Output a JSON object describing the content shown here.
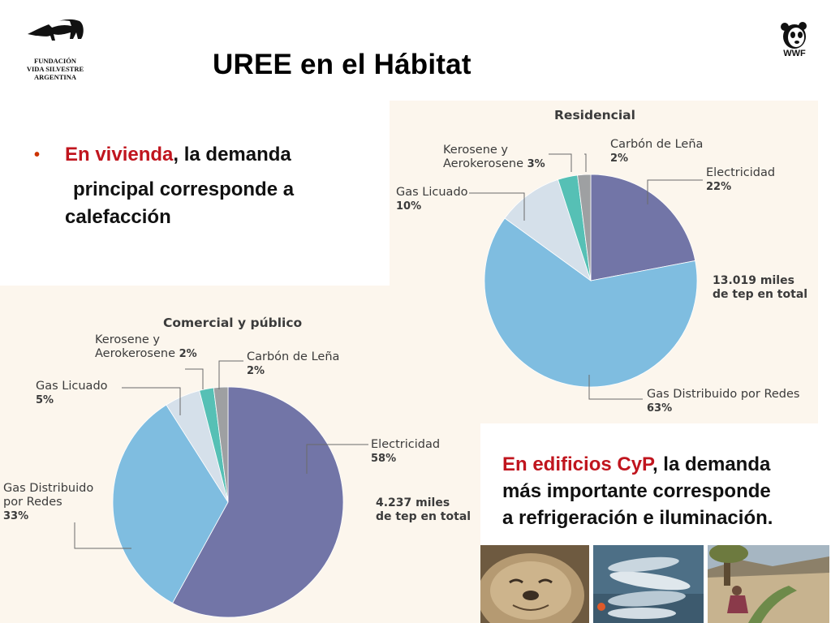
{
  "header": {
    "title": "UREE en el Hábitat",
    "org_logo": {
      "icon": "anteater-logo",
      "lines": [
        "FUNDACIÓN",
        "VIDA SILVESTRE",
        "ARGENTINA"
      ]
    },
    "wwf_logo": {
      "icon": "panda-logo",
      "text": "WWF"
    }
  },
  "bullets": {
    "vivienda": {
      "highlight": "En vivienda",
      "line1_rest": ", la demanda",
      "line2": "principal corresponde a",
      "line3": "calefacción"
    },
    "cyp": {
      "highlight": "En edificios CyP",
      "line1_rest": ", la demanda",
      "line2": "más importante corresponde",
      "line3": "a refrigeración e iluminación."
    }
  },
  "colors": {
    "electricidad": "#7275a7",
    "gas_distribuido": "#7fbde0",
    "gas_licuado": "#d5e0ea",
    "kerosene": "#56c0b5",
    "carbon": "#9ea0a2",
    "highlight_red": "#c0151e",
    "panel_bg": "#fcf6ed"
  },
  "chart_data": [
    {
      "type": "pie",
      "title": "Residencial",
      "categories": [
        "Electricidad",
        "Gas Distribuido por Redes",
        "Gas Licuado",
        "Kerosene y Aerokerosene",
        "Carbón de Leña"
      ],
      "values": [
        22,
        63,
        10,
        3,
        2
      ],
      "value_labels": [
        "22%",
        "63%",
        "10%",
        "3%",
        "2%"
      ],
      "total": "13.019 miles de tep en total",
      "total_lines": [
        "13.019 miles",
        "de tep en total"
      ]
    },
    {
      "type": "pie",
      "title": "Comercial y público",
      "categories": [
        "Electricidad",
        "Gas Distribuido por Redes",
        "Gas Licuado",
        "Kerosene y Aerokerosene",
        "Carbón de Leña"
      ],
      "values": [
        58,
        33,
        5,
        2,
        2
      ],
      "value_labels": [
        "58%",
        "33%",
        "5%",
        "2%",
        "2%"
      ],
      "total": "4.237 miles de tep en total",
      "total_lines": [
        "4.237 miles",
        "de tep en total"
      ]
    }
  ],
  "labels": {
    "res": {
      "carbon": [
        "Carbón de Leña",
        "2%"
      ],
      "kerosene": [
        "Kerosene y",
        "Aerokerosene",
        "3%"
      ],
      "gas_licuado": [
        "Gas Licuado",
        "10%"
      ],
      "electricidad": [
        "Electricidad",
        "22%"
      ],
      "gas_distribuido": [
        "Gas Distribuido por Redes",
        "63%"
      ]
    },
    "com": {
      "kerosene": [
        "Kerosene y",
        "Aerokerosene",
        "2%"
      ],
      "carbon": [
        "Carbón de Leña",
        "2%"
      ],
      "gas_licuado": [
        "Gas Licuado",
        "5%"
      ],
      "electricidad": [
        "Electricidad",
        "58%"
      ],
      "gas_distribuido": [
        "Gas Distribuido",
        "por Redes",
        "33%"
      ]
    }
  },
  "photos": [
    "elephant-seal-photo",
    "fish-photo",
    "person-irrigation-photo"
  ]
}
